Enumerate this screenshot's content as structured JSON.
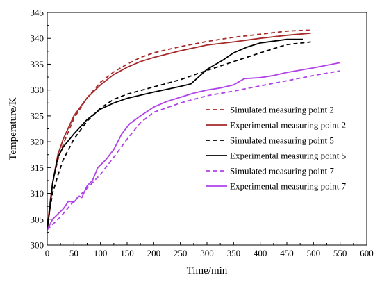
{
  "chart_data": {
    "type": "line",
    "xlabel": "Time/min",
    "ylabel": "Temperature/K",
    "xlim": [
      0,
      600
    ],
    "ylim": [
      300,
      345
    ],
    "xticks": [
      0,
      50,
      100,
      150,
      200,
      250,
      300,
      350,
      400,
      450,
      500,
      550,
      600
    ],
    "yticks": [
      300,
      305,
      310,
      315,
      320,
      325,
      330,
      335,
      340,
      345
    ],
    "grid": false,
    "legend_position": "right",
    "series": [
      {
        "name": "Simulated measuring point 2",
        "color": "#a52a2a",
        "dash": "dashed",
        "points": [
          [
            0,
            303
          ],
          [
            5,
            308
          ],
          [
            10,
            312
          ],
          [
            20,
            316.5
          ],
          [
            30,
            319.5
          ],
          [
            50,
            324.5
          ],
          [
            75,
            328.5
          ],
          [
            100,
            331.5
          ],
          [
            125,
            333.5
          ],
          [
            150,
            335
          ],
          [
            175,
            336.3
          ],
          [
            200,
            337.2
          ],
          [
            250,
            338.4
          ],
          [
            300,
            339.4
          ],
          [
            350,
            340.2
          ],
          [
            400,
            340.8
          ],
          [
            450,
            341.4
          ],
          [
            495,
            341.6
          ]
        ]
      },
      {
        "name": "Experimental measuring point 2",
        "color": "#a52a2a",
        "dash": "solid",
        "points": [
          [
            0,
            303
          ],
          [
            5,
            308
          ],
          [
            10,
            312
          ],
          [
            20,
            317.5
          ],
          [
            30,
            320.5
          ],
          [
            50,
            325
          ],
          [
            75,
            328.5
          ],
          [
            100,
            331
          ],
          [
            125,
            333
          ],
          [
            150,
            334.4
          ],
          [
            175,
            335.5
          ],
          [
            200,
            336.3
          ],
          [
            250,
            337.6
          ],
          [
            300,
            338.7
          ],
          [
            350,
            339.3
          ],
          [
            400,
            340
          ],
          [
            450,
            340.6
          ],
          [
            495,
            341
          ]
        ]
      },
      {
        "name": "Simulated measuring point 5",
        "color": "#000000",
        "dash": "dashed",
        "points": [
          [
            0,
            303
          ],
          [
            5,
            307
          ],
          [
            10,
            310
          ],
          [
            20,
            313.5
          ],
          [
            30,
            316.5
          ],
          [
            50,
            320.5
          ],
          [
            75,
            324
          ],
          [
            100,
            326.5
          ],
          [
            125,
            328.2
          ],
          [
            150,
            329.2
          ],
          [
            175,
            329.9
          ],
          [
            200,
            330.6
          ],
          [
            250,
            332
          ],
          [
            300,
            333.8
          ],
          [
            350,
            335.5
          ],
          [
            400,
            337.2
          ],
          [
            450,
            338.8
          ],
          [
            495,
            339.3
          ]
        ]
      },
      {
        "name": "Experimental measuring point 5",
        "color": "#000000",
        "dash": "solid",
        "points": [
          [
            0,
            303
          ],
          [
            5,
            307
          ],
          [
            10,
            312
          ],
          [
            20,
            317
          ],
          [
            30,
            319
          ],
          [
            50,
            321.5
          ],
          [
            75,
            324.3
          ],
          [
            100,
            326.3
          ],
          [
            125,
            327.5
          ],
          [
            150,
            328.4
          ],
          [
            175,
            329
          ],
          [
            200,
            329.6
          ],
          [
            250,
            330.7
          ],
          [
            270,
            331.2
          ],
          [
            300,
            334
          ],
          [
            330,
            335.8
          ],
          [
            350,
            337.2
          ],
          [
            375,
            338.3
          ],
          [
            400,
            339.1
          ],
          [
            450,
            339.8
          ],
          [
            480,
            339.8
          ]
        ]
      },
      {
        "name": "Simulated measuring point 7",
        "color": "#b041e8",
        "dash": "dashed",
        "points": [
          [
            0,
            303
          ],
          [
            25,
            305.5
          ],
          [
            50,
            308.5
          ],
          [
            75,
            311
          ],
          [
            100,
            313.7
          ],
          [
            125,
            317
          ],
          [
            150,
            320.5
          ],
          [
            175,
            323.7
          ],
          [
            200,
            325.7
          ],
          [
            250,
            327.5
          ],
          [
            300,
            328.9
          ],
          [
            350,
            329.8
          ],
          [
            400,
            330.8
          ],
          [
            450,
            331.8
          ],
          [
            500,
            332.8
          ],
          [
            550,
            333.7
          ]
        ]
      },
      {
        "name": "Experimental measuring point 7",
        "color": "#b041e8",
        "dash": "solid",
        "points": [
          [
            0,
            303
          ],
          [
            10,
            305
          ],
          [
            20,
            306
          ],
          [
            30,
            307
          ],
          [
            40,
            308.5
          ],
          [
            50,
            308.3
          ],
          [
            60,
            309.5
          ],
          [
            65,
            309.2
          ],
          [
            75,
            311.5
          ],
          [
            85,
            312.5
          ],
          [
            95,
            315
          ],
          [
            110,
            316.5
          ],
          [
            125,
            318.5
          ],
          [
            140,
            321.5
          ],
          [
            155,
            323.5
          ],
          [
            175,
            325
          ],
          [
            200,
            326.7
          ],
          [
            225,
            327.8
          ],
          [
            250,
            328.6
          ],
          [
            275,
            329.4
          ],
          [
            300,
            330
          ],
          [
            325,
            330.4
          ],
          [
            350,
            331
          ],
          [
            360,
            331.6
          ],
          [
            370,
            332.2
          ],
          [
            400,
            332.4
          ],
          [
            425,
            332.8
          ],
          [
            450,
            333.4
          ],
          [
            500,
            334.3
          ],
          [
            550,
            335.3
          ]
        ]
      }
    ]
  }
}
